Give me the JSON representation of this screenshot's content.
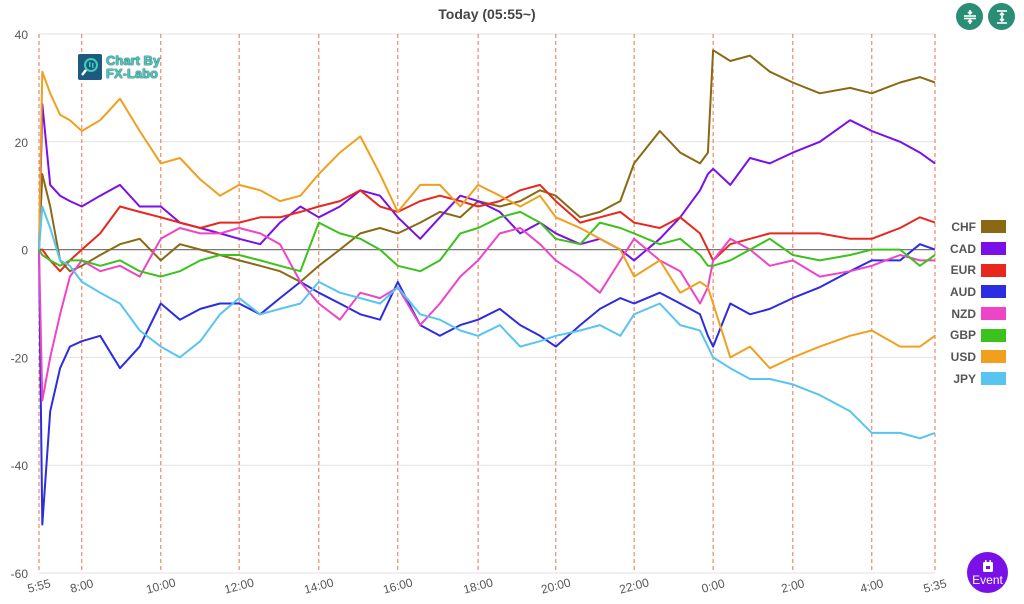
{
  "header": {
    "title": "Today  (05:55~)"
  },
  "toolbar": {
    "collapse_icon": "compress-vertical-icon",
    "expand_icon": "expand-vertical-icon"
  },
  "event_button": {
    "label": "Event",
    "icon": "calendar-icon"
  },
  "logo": {
    "line1": "Chart By",
    "line2": "FX-Labo"
  },
  "chart_data": {
    "type": "line",
    "title": "Today  (05:55~)",
    "xlabel": "",
    "ylabel": "",
    "ylim": [
      -60,
      40
    ],
    "yticks": [
      40,
      20,
      0,
      -20,
      -40,
      -60
    ],
    "xlim": [
      0,
      1361
    ],
    "xticks": [
      {
        "label": "5:55",
        "x": 0
      },
      {
        "label": "8:00",
        "x": 65
      },
      {
        "label": "10:00",
        "x": 185
      },
      {
        "label": "12:00",
        "x": 304
      },
      {
        "label": "14:00",
        "x": 425
      },
      {
        "label": "16:00",
        "x": 545
      },
      {
        "label": "18:00",
        "x": 667
      },
      {
        "label": "20:00",
        "x": 785
      },
      {
        "label": "22:00",
        "x": 904
      },
      {
        "label": "0:00",
        "x": 1024
      },
      {
        "label": "2:00",
        "x": 1145
      },
      {
        "label": "4:00",
        "x": 1265
      },
      {
        "label": "5:35",
        "x": 1361
      }
    ],
    "grid": true,
    "legend_position": "right",
    "x": [
      0,
      5,
      17,
      32,
      47,
      65,
      93,
      123,
      153,
      185,
      214,
      245,
      275,
      304,
      336,
      366,
      397,
      425,
      457,
      488,
      518,
      545,
      579,
      609,
      640,
      667,
      700,
      731,
      761,
      785,
      822,
      852,
      883,
      904,
      943,
      974,
      1004,
      1016,
      1024,
      1050,
      1080,
      1110,
      1145,
      1186,
      1232,
      1265,
      1308,
      1338,
      1361
    ],
    "series": [
      {
        "name": "CHF",
        "color": "#8b6914",
        "values": [
          0,
          14,
          8,
          -2,
          -4,
          -3,
          -1,
          1,
          2,
          -2,
          1,
          0,
          -1,
          -2,
          -3,
          -4,
          -6,
          -3,
          0,
          3,
          4,
          3,
          5,
          7,
          6,
          9,
          8,
          9,
          11,
          10,
          6,
          7,
          9,
          16,
          22,
          18,
          16,
          18,
          37,
          35,
          36,
          33,
          31,
          29,
          30,
          29,
          31,
          32,
          31
        ]
      },
      {
        "name": "CAD",
        "color": "#7a10e8",
        "values": [
          0,
          27,
          12,
          10,
          9,
          8,
          10,
          12,
          8,
          8,
          5,
          4,
          3,
          2,
          1,
          5,
          8,
          6,
          8,
          11,
          10,
          6,
          2,
          6,
          10,
          9,
          7,
          3,
          5,
          3,
          1,
          2,
          0,
          -2,
          2,
          6,
          11,
          14,
          15,
          12,
          17,
          16,
          18,
          20,
          24,
          22,
          20,
          18,
          16
        ]
      },
      {
        "name": "EUR",
        "color": "#e8281e",
        "values": [
          0,
          0,
          -2,
          -4,
          -2,
          0,
          3,
          8,
          7,
          6,
          5,
          4,
          5,
          5,
          6,
          6,
          7,
          8,
          9,
          11,
          8,
          7,
          9,
          10,
          9,
          8,
          9,
          11,
          12,
          9,
          5,
          6,
          7,
          5,
          4,
          6,
          3,
          0,
          -2,
          1,
          2,
          3,
          3,
          3,
          2,
          2,
          4,
          6,
          5
        ]
      },
      {
        "name": "AUD",
        "color": "#2c2ce0",
        "values": [
          0,
          -51,
          -30,
          -22,
          -18,
          -17,
          -16,
          -22,
          -18,
          -10,
          -13,
          -11,
          -10,
          -10,
          -12,
          -9,
          -6,
          -8,
          -10,
          -12,
          -13,
          -6,
          -14,
          -16,
          -14,
          -13,
          -11,
          -14,
          -16,
          -18,
          -14,
          -11,
          -9,
          -10,
          -8,
          -10,
          -12,
          -16,
          -18,
          -10,
          -12,
          -11,
          -9,
          -7,
          -4,
          -2,
          -2,
          1,
          0
        ]
      },
      {
        "name": "NZD",
        "color": "#ee44c8",
        "values": [
          0,
          -28,
          -20,
          -12,
          -5,
          -2,
          -4,
          -3,
          -5,
          2,
          4,
          3,
          3,
          4,
          3,
          1,
          -6,
          -10,
          -13,
          -8,
          -9,
          -7,
          -14,
          -10,
          -5,
          -2,
          3,
          4,
          1,
          -2,
          -5,
          -8,
          -2,
          2,
          -2,
          -4,
          -10,
          -7,
          -2,
          2,
          0,
          -3,
          -2,
          -5,
          -4,
          -3,
          -1,
          -2,
          -2
        ]
      },
      {
        "name": "GBP",
        "color": "#3cc21c",
        "values": [
          0,
          -1,
          -2,
          -3,
          -2,
          -2,
          -3,
          -2,
          -4,
          -5,
          -4,
          -2,
          -1,
          -1,
          -2,
          -3,
          -4,
          5,
          3,
          2,
          0,
          -3,
          -4,
          -2,
          3,
          4,
          6,
          7,
          5,
          2,
          1,
          5,
          4,
          3,
          1,
          2,
          -1,
          -3,
          -3,
          -2,
          0,
          2,
          -1,
          -2,
          -1,
          0,
          0,
          -3,
          -1
        ]
      },
      {
        "name": "USD",
        "color": "#f0a01e",
        "values": [
          0,
          33,
          29,
          25,
          24,
          22,
          24,
          28,
          22,
          16,
          17,
          13,
          10,
          12,
          11,
          9,
          10,
          14,
          18,
          21,
          14,
          7,
          12,
          12,
          8,
          12,
          10,
          8,
          10,
          6,
          4,
          2,
          0,
          -5,
          -2,
          -8,
          -6,
          -7,
          -10,
          -20,
          -18,
          -22,
          -20,
          -18,
          -16,
          -15,
          -18,
          -18,
          -16
        ]
      },
      {
        "name": "JPY",
        "color": "#58c4f0",
        "values": [
          0,
          8,
          4,
          -2,
          -3,
          -6,
          -8,
          -10,
          -15,
          -18,
          -20,
          -17,
          -12,
          -9,
          -12,
          -11,
          -10,
          -6,
          -8,
          -9,
          -10,
          -7,
          -12,
          -13,
          -15,
          -16,
          -14,
          -18,
          -17,
          -16,
          -15,
          -14,
          -16,
          -12,
          -10,
          -14,
          -15,
          -18,
          -20,
          -22,
          -24,
          -24,
          -25,
          -27,
          -30,
          -34,
          -34,
          -35,
          -34
        ]
      }
    ]
  }
}
